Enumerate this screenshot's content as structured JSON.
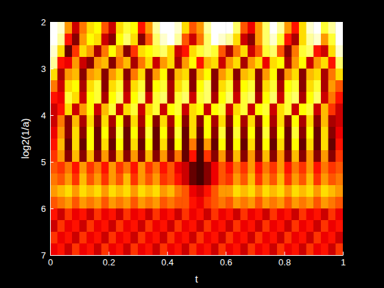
{
  "chart_data": {
    "type": "heatmap",
    "x_label": "t",
    "y_label": "log2(1/a)",
    "color": "hot",
    "xlim": [
      0,
      1
    ],
    "ylim": [
      7,
      2
    ],
    "xticks": [
      0,
      0.2,
      0.4,
      0.6,
      0.8,
      1
    ],
    "yticks": [
      2,
      3,
      4,
      5,
      6,
      7
    ],
    "x": [
      0.0125,
      0.0375,
      0.0625,
      0.0875,
      0.1125,
      0.1375,
      0.1625,
      0.1875,
      0.2125,
      0.2375,
      0.2625,
      0.2875,
      0.3125,
      0.3375,
      0.3625,
      0.3875,
      0.4125,
      0.4375,
      0.4625,
      0.4875,
      0.5125,
      0.5375,
      0.5625,
      0.5875,
      0.6125,
      0.6375,
      0.6625,
      0.6875,
      0.7125,
      0.7375,
      0.7625,
      0.7875,
      0.8125,
      0.8375,
      0.8625,
      0.8875,
      0.9125,
      0.9375,
      0.9625,
      0.9875
    ],
    "y": [
      2.125,
      2.375,
      2.625,
      2.875,
      3.125,
      3.375,
      3.625,
      3.875,
      4.125,
      4.375,
      4.625,
      4.875,
      5.125,
      5.375,
      5.625,
      5.875,
      6.125,
      6.375,
      6.625,
      6.875
    ],
    "values": [
      [
        1,
        0.95,
        0.6,
        0.3,
        0.55,
        0.7,
        0.75,
        0.5,
        0.3,
        0.7,
        0.8,
        0.75,
        0.4,
        0.6,
        0.9,
        1,
        1,
        0.95,
        0.7,
        0.5,
        0.6,
        0.9,
        1,
        1,
        1,
        0.85,
        0.5,
        0.35,
        0.6,
        0.85,
        1,
        0.9,
        0.6,
        0.4,
        0.7,
        0.95,
        1,
        0.8,
        0.9,
        1
      ],
      [
        1,
        0.9,
        0.4,
        0.2,
        0.6,
        0.75,
        0.7,
        0.3,
        0.2,
        0.75,
        0.85,
        0.7,
        0.2,
        0.5,
        0.85,
        0.95,
        1,
        0.9,
        0.5,
        0.3,
        0.55,
        0.85,
        1,
        0.95,
        0.9,
        0.7,
        0.3,
        0.2,
        0.6,
        0.85,
        0.95,
        0.8,
        0.4,
        0.25,
        0.7,
        0.9,
        0.95,
        0.6,
        0.8,
        1
      ],
      [
        0.95,
        0.7,
        0.15,
        0.45,
        0.7,
        0.6,
        0.25,
        0.55,
        0.75,
        0.6,
        0.2,
        0.45,
        0.7,
        0.75,
        0.8,
        0.85,
        0.7,
        0.3,
        0.4,
        0.7,
        0.8,
        0.85,
        0.8,
        0.5,
        0.25,
        0.55,
        0.7,
        0.3,
        0.5,
        0.8,
        0.85,
        0.5,
        0.2,
        0.55,
        0.8,
        0.85,
        0.4,
        0.3,
        0.7,
        0.95
      ],
      [
        0.9,
        0.4,
        0.35,
        0.6,
        0.3,
        0.2,
        0.6,
        0.65,
        0.2,
        0.55,
        0.65,
        0.25,
        0.55,
        0.7,
        0.3,
        0.6,
        0.7,
        0.25,
        0.6,
        0.75,
        0.4,
        0.65,
        0.7,
        0.3,
        0.6,
        0.7,
        0.25,
        0.6,
        0.7,
        0.35,
        0.7,
        0.75,
        0.25,
        0.6,
        0.75,
        0.3,
        0.6,
        0.7,
        0.4,
        0.85
      ],
      [
        0.7,
        0.25,
        0.6,
        0.65,
        0.2,
        0.6,
        0.65,
        0.2,
        0.6,
        0.7,
        0.2,
        0.55,
        0.7,
        0.2,
        0.6,
        0.75,
        0.2,
        0.65,
        0.7,
        0.2,
        0.65,
        0.75,
        0.2,
        0.6,
        0.7,
        0.2,
        0.65,
        0.7,
        0.2,
        0.6,
        0.75,
        0.2,
        0.6,
        0.7,
        0.2,
        0.65,
        0.7,
        0.25,
        0.55,
        0.7
      ],
      [
        0.55,
        0.3,
        0.7,
        0.75,
        0.25,
        0.7,
        0.8,
        0.2,
        0.7,
        0.8,
        0.25,
        0.7,
        0.8,
        0.2,
        0.75,
        0.8,
        0.25,
        0.7,
        0.8,
        0.2,
        0.75,
        0.85,
        0.2,
        0.7,
        0.8,
        0.25,
        0.75,
        0.8,
        0.2,
        0.7,
        0.8,
        0.25,
        0.75,
        0.8,
        0.2,
        0.7,
        0.8,
        0.25,
        0.6,
        0.5
      ],
      [
        0.4,
        0.35,
        0.8,
        0.7,
        0.3,
        0.75,
        0.8,
        0.25,
        0.75,
        0.85,
        0.3,
        0.75,
        0.85,
        0.3,
        0.8,
        0.85,
        0.25,
        0.8,
        0.85,
        0.3,
        0.8,
        0.85,
        0.25,
        0.75,
        0.85,
        0.3,
        0.8,
        0.85,
        0.25,
        0.75,
        0.85,
        0.3,
        0.8,
        0.85,
        0.25,
        0.75,
        0.85,
        0.3,
        0.55,
        0.4
      ],
      [
        0.3,
        0.4,
        0.7,
        0.3,
        0.6,
        0.75,
        0.3,
        0.65,
        0.8,
        0.3,
        0.7,
        0.8,
        0.3,
        0.7,
        0.8,
        0.3,
        0.75,
        0.8,
        0.3,
        0.7,
        0.75,
        0.3,
        0.75,
        0.8,
        0.3,
        0.7,
        0.8,
        0.3,
        0.75,
        0.8,
        0.3,
        0.7,
        0.8,
        0.3,
        0.75,
        0.8,
        0.3,
        0.65,
        0.45,
        0.3
      ],
      [
        0.3,
        0.55,
        0.2,
        0.65,
        0.25,
        0.7,
        0.2,
        0.7,
        0.25,
        0.75,
        0.2,
        0.7,
        0.25,
        0.75,
        0.2,
        0.7,
        0.25,
        0.75,
        0.2,
        0.7,
        0.2,
        0.75,
        0.25,
        0.7,
        0.2,
        0.75,
        0.25,
        0.7,
        0.2,
        0.75,
        0.25,
        0.7,
        0.2,
        0.75,
        0.25,
        0.7,
        0.2,
        0.65,
        0.25,
        0.3
      ],
      [
        0.35,
        0.6,
        0.2,
        0.7,
        0.2,
        0.75,
        0.15,
        0.75,
        0.2,
        0.8,
        0.15,
        0.75,
        0.2,
        0.8,
        0.15,
        0.75,
        0.2,
        0.8,
        0.15,
        0.7,
        0.15,
        0.75,
        0.2,
        0.8,
        0.15,
        0.8,
        0.2,
        0.75,
        0.15,
        0.8,
        0.2,
        0.75,
        0.15,
        0.8,
        0.2,
        0.75,
        0.15,
        0.7,
        0.2,
        0.35
      ],
      [
        0.4,
        0.65,
        0.15,
        0.7,
        0.15,
        0.75,
        0.15,
        0.7,
        0.15,
        0.75,
        0.15,
        0.7,
        0.15,
        0.75,
        0.15,
        0.7,
        0.15,
        0.75,
        0.15,
        0.55,
        0.1,
        0.6,
        0.15,
        0.75,
        0.15,
        0.75,
        0.15,
        0.7,
        0.15,
        0.75,
        0.15,
        0.7,
        0.15,
        0.75,
        0.15,
        0.7,
        0.15,
        0.7,
        0.15,
        0.4
      ],
      [
        0.45,
        0.6,
        0.2,
        0.65,
        0.2,
        0.65,
        0.2,
        0.6,
        0.2,
        0.65,
        0.2,
        0.6,
        0.2,
        0.65,
        0.2,
        0.6,
        0.2,
        0.55,
        0.15,
        0.4,
        0.1,
        0.45,
        0.2,
        0.6,
        0.2,
        0.65,
        0.2,
        0.6,
        0.2,
        0.65,
        0.2,
        0.6,
        0.2,
        0.65,
        0.2,
        0.6,
        0.2,
        0.6,
        0.2,
        0.45
      ],
      [
        0.5,
        0.45,
        0.55,
        0.4,
        0.6,
        0.45,
        0.55,
        0.4,
        0.6,
        0.45,
        0.55,
        0.4,
        0.6,
        0.45,
        0.55,
        0.4,
        0.5,
        0.35,
        0.3,
        0.15,
        0.1,
        0.2,
        0.35,
        0.5,
        0.4,
        0.55,
        0.45,
        0.6,
        0.4,
        0.55,
        0.45,
        0.6,
        0.4,
        0.55,
        0.45,
        0.6,
        0.4,
        0.55,
        0.45,
        0.5
      ],
      [
        0.55,
        0.5,
        0.6,
        0.45,
        0.65,
        0.5,
        0.6,
        0.45,
        0.6,
        0.5,
        0.65,
        0.45,
        0.6,
        0.5,
        0.6,
        0.45,
        0.5,
        0.4,
        0.3,
        0.15,
        0.1,
        0.2,
        0.35,
        0.5,
        0.45,
        0.6,
        0.5,
        0.65,
        0.45,
        0.6,
        0.5,
        0.65,
        0.45,
        0.6,
        0.5,
        0.65,
        0.45,
        0.6,
        0.5,
        0.55
      ],
      [
        0.6,
        0.65,
        0.7,
        0.6,
        0.7,
        0.65,
        0.7,
        0.6,
        0.7,
        0.65,
        0.7,
        0.6,
        0.7,
        0.65,
        0.7,
        0.6,
        0.65,
        0.55,
        0.5,
        0.35,
        0.3,
        0.4,
        0.5,
        0.6,
        0.6,
        0.7,
        0.65,
        0.7,
        0.6,
        0.7,
        0.65,
        0.7,
        0.6,
        0.7,
        0.65,
        0.7,
        0.6,
        0.7,
        0.65,
        0.6
      ],
      [
        0.5,
        0.55,
        0.6,
        0.5,
        0.6,
        0.55,
        0.6,
        0.5,
        0.6,
        0.55,
        0.6,
        0.5,
        0.6,
        0.55,
        0.6,
        0.5,
        0.55,
        0.5,
        0.5,
        0.4,
        0.35,
        0.45,
        0.5,
        0.55,
        0.5,
        0.6,
        0.55,
        0.6,
        0.5,
        0.6,
        0.55,
        0.6,
        0.5,
        0.6,
        0.55,
        0.6,
        0.5,
        0.6,
        0.55,
        0.5
      ],
      [
        0.4,
        0.3,
        0.45,
        0.35,
        0.4,
        0.3,
        0.45,
        0.35,
        0.4,
        0.3,
        0.45,
        0.35,
        0.4,
        0.3,
        0.45,
        0.35,
        0.4,
        0.3,
        0.45,
        0.35,
        0.4,
        0.3,
        0.45,
        0.35,
        0.4,
        0.3,
        0.45,
        0.35,
        0.4,
        0.3,
        0.45,
        0.35,
        0.4,
        0.3,
        0.45,
        0.35,
        0.4,
        0.3,
        0.45,
        0.35
      ],
      [
        0.3,
        0.45,
        0.35,
        0.4,
        0.3,
        0.45,
        0.35,
        0.4,
        0.3,
        0.45,
        0.35,
        0.4,
        0.3,
        0.45,
        0.35,
        0.4,
        0.3,
        0.45,
        0.35,
        0.4,
        0.3,
        0.45,
        0.35,
        0.4,
        0.3,
        0.45,
        0.35,
        0.4,
        0.3,
        0.45,
        0.35,
        0.4,
        0.3,
        0.45,
        0.35,
        0.4,
        0.3,
        0.45,
        0.35,
        0.4
      ],
      [
        0.45,
        0.35,
        0.4,
        0.3,
        0.45,
        0.35,
        0.4,
        0.3,
        0.45,
        0.35,
        0.4,
        0.3,
        0.45,
        0.35,
        0.4,
        0.3,
        0.45,
        0.35,
        0.4,
        0.3,
        0.45,
        0.35,
        0.4,
        0.3,
        0.45,
        0.35,
        0.4,
        0.3,
        0.45,
        0.35,
        0.4,
        0.3,
        0.45,
        0.35,
        0.4,
        0.3,
        0.45,
        0.35,
        0.4,
        0.3
      ],
      [
        0.35,
        0.4,
        0.3,
        0.45,
        0.35,
        0.4,
        0.3,
        0.45,
        0.35,
        0.4,
        0.3,
        0.45,
        0.35,
        0.4,
        0.3,
        0.45,
        0.35,
        0.4,
        0.3,
        0.45,
        0.35,
        0.4,
        0.3,
        0.45,
        0.35,
        0.4,
        0.3,
        0.45,
        0.35,
        0.4,
        0.3,
        0.45,
        0.35,
        0.4,
        0.3,
        0.45,
        0.35,
        0.4,
        0.3,
        0.45
      ]
    ]
  }
}
